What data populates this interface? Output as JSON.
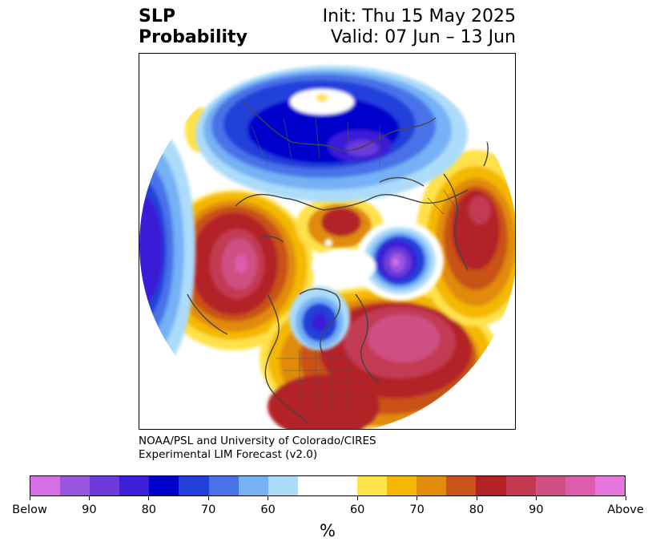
{
  "header": {
    "title_line1": "SLP",
    "title_line2": "Probability",
    "init": "Init: Thu 15 May 2025",
    "valid": "Valid: 07 Jun – 13 Jun"
  },
  "credit": {
    "line1": "NOAA/PSL and University of Colorado/CIRES",
    "line2": "Experimental LIM Forecast (v2.0)"
  },
  "colorbar": {
    "below_colors": [
      "#d66ee6",
      "#9a55e0",
      "#6a3bd8",
      "#3a1fd6",
      "#0000cc",
      "#2140da",
      "#4a72e8",
      "#75b1f4",
      "#acdcfa"
    ],
    "neutral_color": "#ffffff",
    "above_colors": [
      "#ffe24a",
      "#f4b800",
      "#e18b0c",
      "#c95318",
      "#b32125",
      "#c23a52",
      "#cf5082",
      "#dd5cab",
      "#e777de"
    ],
    "tick_labels": [
      "Below",
      "90",
      "80",
      "70",
      "60",
      "60",
      "70",
      "80",
      "90",
      "Above"
    ],
    "unit_label": "%"
  }
}
